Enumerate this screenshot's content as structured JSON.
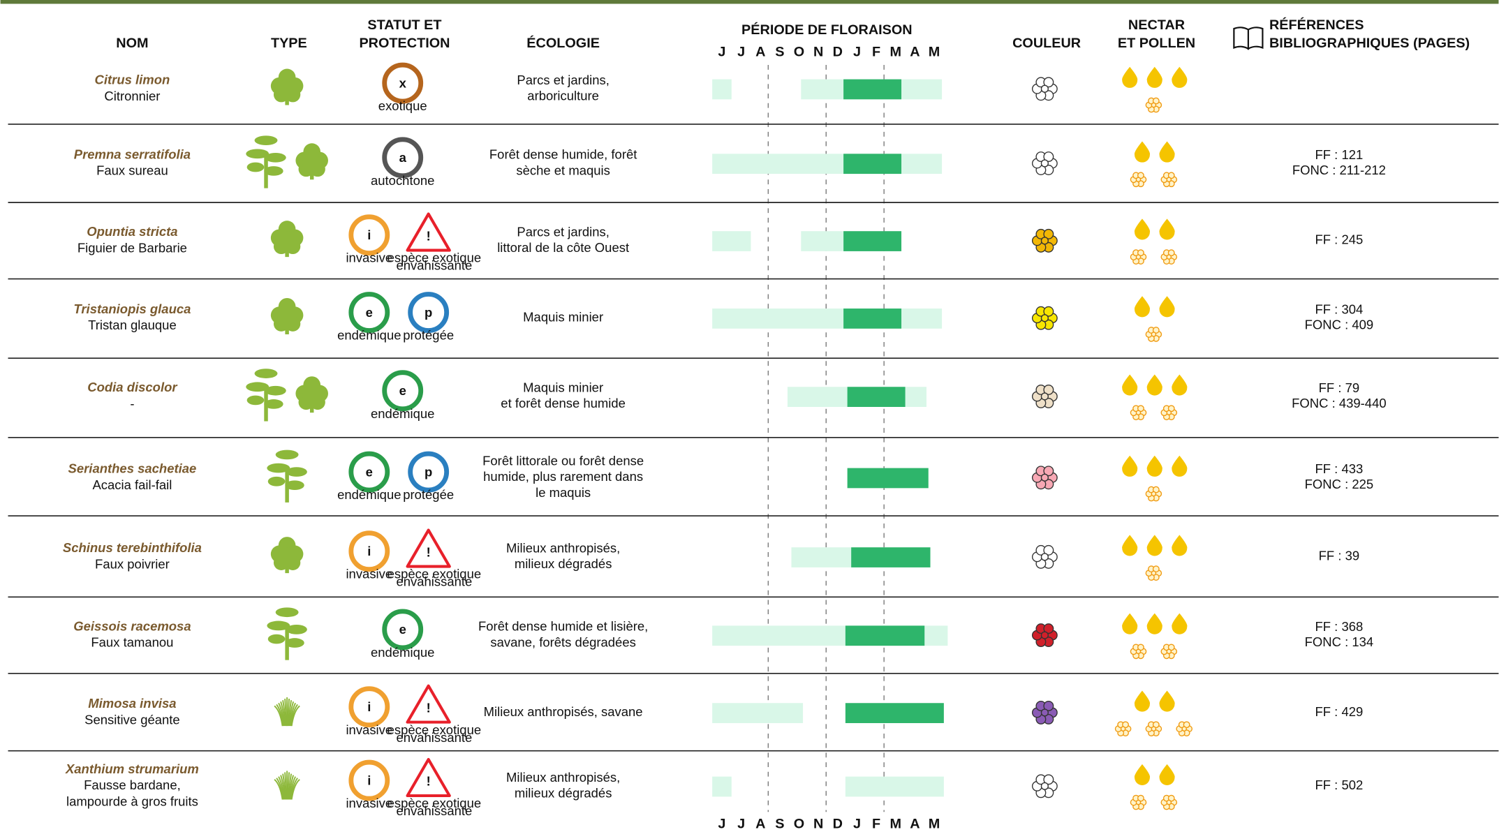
{
  "header": {
    "name": "NOM",
    "type": "TYPE",
    "status": [
      "STATUT ET",
      "PROTECTION"
    ],
    "ecology": "ÉCOLOGIE",
    "period": "PÉRIODE DE FLORAISON",
    "months": [
      "J",
      "J",
      "A",
      "S",
      "O",
      "N",
      "D",
      "J",
      "F",
      "M",
      "A",
      "M"
    ],
    "color": "COULEUR",
    "nectar": [
      "NECTAR",
      "ET POLLEN"
    ],
    "references": [
      "RÉFÉRENCES",
      "BIBLIOGRAPHIQUES (PAGES)"
    ]
  },
  "rows": [
    {
      "latin": "Citrus limon",
      "common": [
        "Citronnier"
      ],
      "status": [
        {
          "letter": "x",
          "label": [
            "exotique"
          ],
          "color": "#b5651d"
        }
      ],
      "ecology": [
        "Parcs et jardins,",
        "arboriculture"
      ],
      "flowering": [
        {
          "start": 0,
          "end": 1,
          "peak": false
        },
        {
          "start": 4.6,
          "end": 11.9,
          "peak": false
        },
        {
          "start": 6.8,
          "end": 9.8,
          "peak": true
        }
      ],
      "flower_color": "#ffffff",
      "nectar": 3,
      "pollen": 1,
      "references": []
    },
    {
      "latin": "Premna serratifolia",
      "common": [
        "Faux sureau"
      ],
      "status": [
        {
          "letter": "a",
          "label": [
            "autochtone"
          ],
          "color": "#555555"
        }
      ],
      "ecology": [
        "Forêt dense humide, forêt",
        "sèche et maquis"
      ],
      "flowering": [
        {
          "start": 0,
          "end": 11.9,
          "peak": false
        },
        {
          "start": 6.8,
          "end": 9.8,
          "peak": true
        }
      ],
      "flower_color": "#ffffff",
      "nectar": 2,
      "pollen": 2,
      "references": [
        "FF : 121",
        "FONC : 211-212"
      ]
    },
    {
      "latin": "Opuntia stricta",
      "common": [
        "Figuier de Barbarie"
      ],
      "status": [
        {
          "letter": "i",
          "label": [
            "invasive"
          ],
          "color": "#f0a030"
        },
        {
          "letter": "!",
          "label": [
            "espèce exotique",
            "envahissante"
          ],
          "color": "#e8202a"
        }
      ],
      "ecology": [
        "Parcs et jardins,",
        "littoral de la côte Ouest"
      ],
      "flowering": [
        {
          "start": 0,
          "end": 2,
          "peak": false
        },
        {
          "start": 4.6,
          "end": 6.8,
          "peak": false
        },
        {
          "start": 6.8,
          "end": 9.8,
          "peak": true
        }
      ],
      "flower_color": "#f2b705",
      "nectar": 2,
      "pollen": 2,
      "references": [
        "FF : 245"
      ]
    },
    {
      "latin": "Tristaniopis glauca",
      "common": [
        "Tristan glauque"
      ],
      "status": [
        {
          "letter": "e",
          "label": [
            "endémique"
          ],
          "color": "#2a9d4a"
        },
        {
          "letter": "p",
          "label": [
            "protégée"
          ],
          "color": "#2a7fc0"
        }
      ],
      "ecology": [
        "Maquis minier"
      ],
      "flowering": [
        {
          "start": 0,
          "end": 11.9,
          "peak": false
        },
        {
          "start": 6.8,
          "end": 9.8,
          "peak": true
        }
      ],
      "flower_color": "#f7e600",
      "nectar": 2,
      "pollen": 1,
      "references": [
        "FF : 304",
        "FONC : 409"
      ]
    },
    {
      "latin": "Codia discolor",
      "common": [
        "-"
      ],
      "status": [
        {
          "letter": "e",
          "label": [
            "endémique"
          ],
          "color": "#2a9d4a"
        }
      ],
      "ecology": [
        "Maquis minier",
        "et forêt dense humide"
      ],
      "flowering": [
        {
          "start": 3.9,
          "end": 11.1,
          "peak": false
        },
        {
          "start": 7,
          "end": 10,
          "peak": true
        }
      ],
      "flower_color": "#efe0c8",
      "nectar": 3,
      "pollen": 2,
      "references": [
        "FF : 79",
        "FONC : 439-440"
      ]
    },
    {
      "latin": "Serianthes sachetiae",
      "common": [
        "Acacia fail-fail"
      ],
      "status": [
        {
          "letter": "e",
          "label": [
            "endémique"
          ],
          "color": "#2a9d4a"
        },
        {
          "letter": "p",
          "label": [
            "protégée"
          ],
          "color": "#2a7fc0"
        }
      ],
      "ecology": [
        "Forêt littorale ou forêt dense",
        "humide, plus rarement dans",
        "le maquis"
      ],
      "flowering": [
        {
          "start": 7,
          "end": 11.2,
          "peak": true
        }
      ],
      "flower_color": "#f7a8b4",
      "nectar": 3,
      "pollen": 1,
      "references": [
        "FF : 433",
        "FONC : 225"
      ]
    },
    {
      "latin": "Schinus terebinthifolia",
      "common": [
        "Faux poivrier"
      ],
      "status": [
        {
          "letter": "i",
          "label": [
            "invasive"
          ],
          "color": "#f0a030"
        },
        {
          "letter": "!",
          "label": [
            "espèce exotique",
            "envahissante"
          ],
          "color": "#e8202a"
        }
      ],
      "ecology": [
        "Milieux anthropisés,",
        "milieux dégradés"
      ],
      "flowering": [
        {
          "start": 4.1,
          "end": 7.2,
          "peak": false
        },
        {
          "start": 7.2,
          "end": 11.3,
          "peak": true
        }
      ],
      "flower_color": "#ffffff",
      "nectar": 3,
      "pollen": 1,
      "references": [
        "FF : 39"
      ]
    },
    {
      "latin": "Geissois racemosa",
      "common": [
        "Faux tamanou"
      ],
      "status": [
        {
          "letter": "e",
          "label": [
            "endémique"
          ],
          "color": "#2a9d4a"
        }
      ],
      "ecology": [
        "Forêt dense humide et lisière,",
        "savane, forêts dégradées"
      ],
      "flowering": [
        {
          "start": 0,
          "end": 12.2,
          "peak": false
        },
        {
          "start": 6.9,
          "end": 11,
          "peak": true
        }
      ],
      "flower_color": "#d0202a",
      "nectar": 3,
      "pollen": 2,
      "references": [
        "FF : 368",
        "FONC : 134"
      ]
    },
    {
      "latin": "Mimosa invisa",
      "common": [
        "Sensitive géante"
      ],
      "status": [
        {
          "letter": "i",
          "label": [
            "invasive"
          ],
          "color": "#f0a030"
        },
        {
          "letter": "!",
          "label": [
            "espèce exotique",
            "envahissante"
          ],
          "color": "#e8202a"
        }
      ],
      "ecology": [
        "Milieux anthropisés, savane"
      ],
      "flowering": [
        {
          "start": 0,
          "end": 4.7,
          "peak": false
        },
        {
          "start": 6.9,
          "end": 12,
          "peak": true
        }
      ],
      "flower_color": "#8a5bb5",
      "nectar": 2,
      "pollen": 3,
      "references": [
        "FF : 429"
      ]
    },
    {
      "latin": "Xanthium strumarium",
      "common": [
        "Fausse bardane,",
        "lampourde à gros fruits"
      ],
      "status": [
        {
          "letter": "i",
          "label": [
            "invasive"
          ],
          "color": "#f0a030"
        },
        {
          "letter": "!",
          "label": [
            "espèce exotique",
            "envahissante"
          ],
          "color": "#e8202a"
        }
      ],
      "ecology": [
        "Milieux anthropisés,",
        "milieux dégradés"
      ],
      "flowering": [
        {
          "start": 0,
          "end": 1,
          "peak": false
        },
        {
          "start": 6.9,
          "end": 12,
          "peak": false
        }
      ],
      "flower_color": "#ffffff",
      "nectar": 2,
      "pollen": 2,
      "references": [
        "FF : 502"
      ]
    }
  ]
}
